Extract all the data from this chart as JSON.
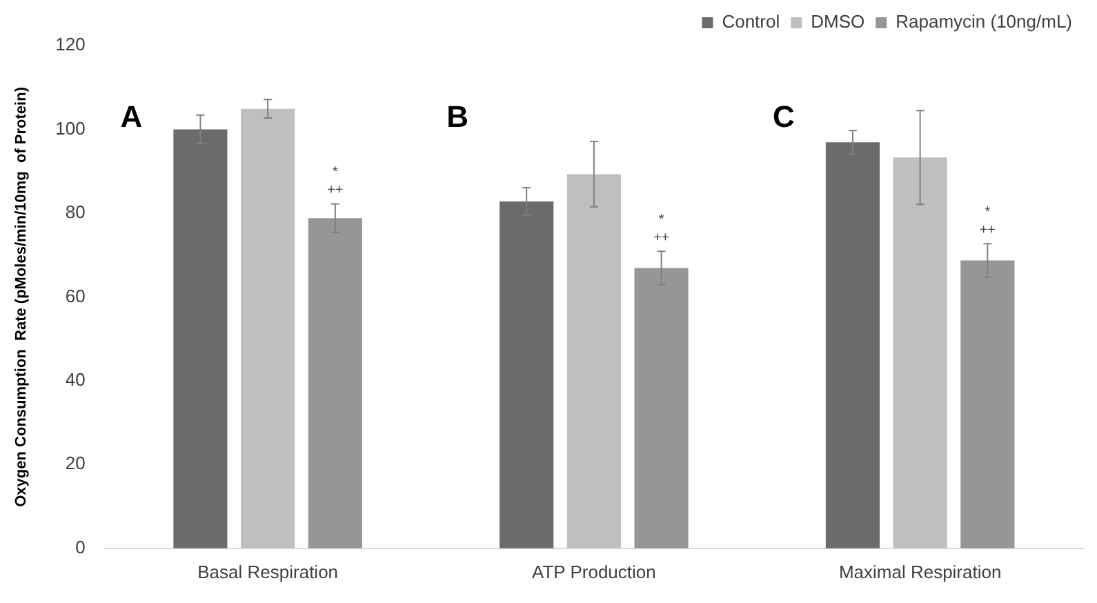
{
  "chart_data": {
    "type": "bar",
    "ylabel": "Oxygen Consumption  Rate (pMoles/min/10mg  of Protein)",
    "categories": [
      "Basal Respiration",
      "ATP Production",
      "Maximal Respiration"
    ],
    "series": [
      {
        "name": "Control",
        "color": "#6b6b6b",
        "values": [
          100,
          82.8,
          96.9
        ],
        "errors": [
          3.4,
          3.3,
          2.8
        ]
      },
      {
        "name": "DMSO",
        "color": "#bfbfbf",
        "values": [
          104.9,
          89.3,
          93.3
        ],
        "errors": [
          2.2,
          7.8,
          11.2
        ]
      },
      {
        "name": "Rapamycin (10ng/mL)",
        "color": "#969696",
        "values": [
          78.8,
          66.9,
          68.7
        ],
        "errors": [
          3.4,
          4,
          4
        ]
      }
    ],
    "ylim": [
      0,
      120
    ],
    "yticks": [
      0,
      20,
      40,
      60,
      80,
      100,
      120
    ],
    "grid": false,
    "legend": "top right",
    "annotations": [
      "A",
      "B",
      "C",
      "*",
      "++",
      "*",
      "++",
      "*",
      "++"
    ]
  }
}
